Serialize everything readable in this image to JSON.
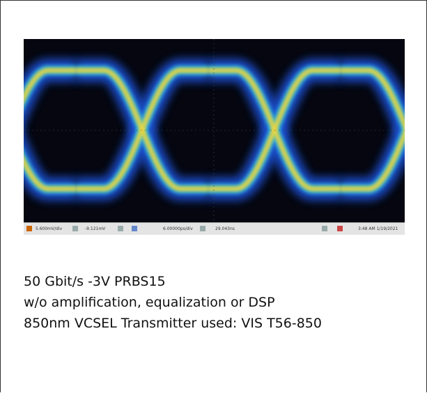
{
  "scope": {
    "status_bar": {
      "vertical_scale": "5.600mV/div",
      "offset": "-9.121mV",
      "horizontal_scale": "6.00000ps/div",
      "position": "29.043ns",
      "timestamp": "3:48 AM 1/19/2021"
    }
  },
  "caption": {
    "lines": [
      "50 Gbit/s -3V PRBS15",
      "w/o amplification, equalization or DSP",
      "850nm VCSEL Transmitter used: VIS T56-850"
    ]
  }
}
